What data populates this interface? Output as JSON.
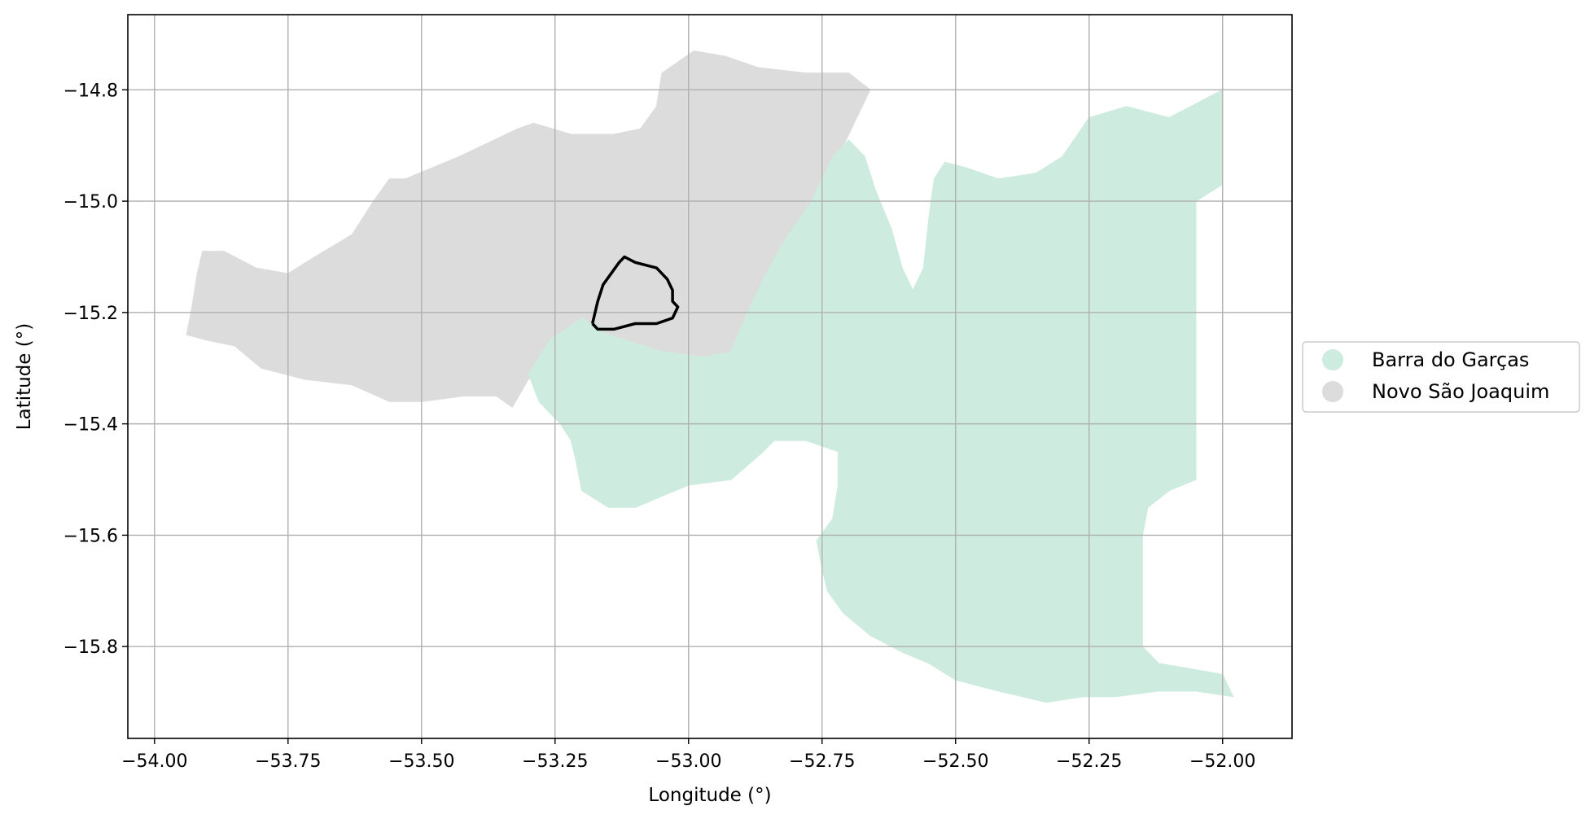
{
  "chart_data": {
    "type": "map",
    "xlabel": "Longitude (°)",
    "ylabel": "Latitude (°)",
    "xlim": [
      -54.05,
      -51.87
    ],
    "ylim": [
      -15.965,
      -14.665
    ],
    "grid": true,
    "legend_placement": "center-right-outside",
    "x_ticks": [
      {
        "value": -54.0,
        "label": "−54.00"
      },
      {
        "value": -53.75,
        "label": "−53.75"
      },
      {
        "value": -53.5,
        "label": "−53.50"
      },
      {
        "value": -53.25,
        "label": "−53.25"
      },
      {
        "value": -53.0,
        "label": "−53.00"
      },
      {
        "value": -52.75,
        "label": "−52.75"
      },
      {
        "value": -52.5,
        "label": "−52.50"
      },
      {
        "value": -52.25,
        "label": "−52.25"
      },
      {
        "value": -52.0,
        "label": "−52.00"
      }
    ],
    "y_ticks": [
      {
        "value": -14.8,
        "label": "−14.8"
      },
      {
        "value": -15.0,
        "label": "−15.0"
      },
      {
        "value": -15.2,
        "label": "−15.2"
      },
      {
        "value": -15.4,
        "label": "−15.4"
      },
      {
        "value": -15.6,
        "label": "−15.6"
      },
      {
        "value": -15.8,
        "label": "−15.8"
      }
    ],
    "regions": [
      {
        "name": "Novo São Joaquim",
        "color": "#dcdcdc",
        "outline": [
          [
            -53.94,
            -15.24
          ],
          [
            -53.93,
            -15.19
          ],
          [
            -53.92,
            -15.13
          ],
          [
            -53.91,
            -15.09
          ],
          [
            -53.87,
            -15.09
          ],
          [
            -53.81,
            -15.12
          ],
          [
            -53.75,
            -15.13
          ],
          [
            -53.7,
            -15.1
          ],
          [
            -53.63,
            -15.06
          ],
          [
            -53.59,
            -15.0
          ],
          [
            -53.56,
            -14.96
          ],
          [
            -53.53,
            -14.96
          ],
          [
            -53.43,
            -14.92
          ],
          [
            -53.32,
            -14.87
          ],
          [
            -53.29,
            -14.86
          ],
          [
            -53.22,
            -14.88
          ],
          [
            -53.14,
            -14.88
          ],
          [
            -53.09,
            -14.87
          ],
          [
            -53.06,
            -14.83
          ],
          [
            -53.05,
            -14.77
          ],
          [
            -52.99,
            -14.73
          ],
          [
            -52.93,
            -14.74
          ],
          [
            -52.87,
            -14.76
          ],
          [
            -52.78,
            -14.77
          ],
          [
            -52.7,
            -14.77
          ],
          [
            -52.66,
            -14.8
          ],
          [
            -52.71,
            -14.9
          ],
          [
            -52.77,
            -15.0
          ],
          [
            -52.82,
            -15.07
          ],
          [
            -52.86,
            -15.14
          ],
          [
            -52.89,
            -15.2
          ],
          [
            -52.92,
            -15.27
          ],
          [
            -52.97,
            -15.28
          ],
          [
            -53.05,
            -15.27
          ],
          [
            -53.15,
            -15.26
          ],
          [
            -53.23,
            -15.28
          ],
          [
            -53.3,
            -15.32
          ],
          [
            -53.33,
            -15.37
          ],
          [
            -53.36,
            -15.35
          ],
          [
            -53.42,
            -15.35
          ],
          [
            -53.5,
            -15.36
          ],
          [
            -53.56,
            -15.36
          ],
          [
            -53.63,
            -15.33
          ],
          [
            -53.72,
            -15.32
          ],
          [
            -53.8,
            -15.3
          ],
          [
            -53.85,
            -15.26
          ],
          [
            -53.9,
            -15.25
          ]
        ]
      },
      {
        "name": "Barra do Garças",
        "color": "#cdebdf",
        "outline": [
          [
            -53.3,
            -15.31
          ],
          [
            -53.26,
            -15.25
          ],
          [
            -53.2,
            -15.21
          ],
          [
            -53.15,
            -15.24
          ],
          [
            -53.05,
            -15.27
          ],
          [
            -52.97,
            -15.28
          ],
          [
            -52.92,
            -15.27
          ],
          [
            -52.89,
            -15.2
          ],
          [
            -52.86,
            -15.14
          ],
          [
            -52.82,
            -15.07
          ],
          [
            -52.77,
            -15.0
          ],
          [
            -52.73,
            -14.92
          ],
          [
            -52.7,
            -14.89
          ],
          [
            -52.67,
            -14.92
          ],
          [
            -52.65,
            -14.98
          ],
          [
            -52.62,
            -15.05
          ],
          [
            -52.6,
            -15.12
          ],
          [
            -52.58,
            -15.16
          ],
          [
            -52.56,
            -15.12
          ],
          [
            -52.55,
            -15.03
          ],
          [
            -52.54,
            -14.96
          ],
          [
            -52.52,
            -14.93
          ],
          [
            -52.48,
            -14.94
          ],
          [
            -52.42,
            -14.96
          ],
          [
            -52.35,
            -14.95
          ],
          [
            -52.3,
            -14.92
          ],
          [
            -52.25,
            -14.85
          ],
          [
            -52.18,
            -14.83
          ],
          [
            -52.1,
            -14.85
          ],
          [
            -52.04,
            -14.82
          ],
          [
            -52.0,
            -14.8
          ],
          [
            -52.0,
            -14.9
          ],
          [
            -52.0,
            -14.97
          ],
          [
            -52.05,
            -15.0
          ],
          [
            -52.05,
            -15.15
          ],
          [
            -52.05,
            -15.3
          ],
          [
            -52.05,
            -15.4
          ],
          [
            -52.05,
            -15.5
          ],
          [
            -52.1,
            -15.52
          ],
          [
            -52.14,
            -15.55
          ],
          [
            -52.15,
            -15.6
          ],
          [
            -52.15,
            -15.65
          ],
          [
            -52.15,
            -15.72
          ],
          [
            -52.15,
            -15.8
          ],
          [
            -52.12,
            -15.83
          ],
          [
            -52.06,
            -15.84
          ],
          [
            -52.0,
            -15.85
          ],
          [
            -51.98,
            -15.89
          ],
          [
            -52.05,
            -15.88
          ],
          [
            -52.12,
            -15.88
          ],
          [
            -52.2,
            -15.89
          ],
          [
            -52.26,
            -15.89
          ],
          [
            -52.33,
            -15.9
          ],
          [
            -52.42,
            -15.88
          ],
          [
            -52.5,
            -15.86
          ],
          [
            -52.55,
            -15.83
          ],
          [
            -52.6,
            -15.81
          ],
          [
            -52.66,
            -15.78
          ],
          [
            -52.71,
            -15.74
          ],
          [
            -52.74,
            -15.7
          ],
          [
            -52.75,
            -15.66
          ],
          [
            -52.76,
            -15.61
          ],
          [
            -52.73,
            -15.57
          ],
          [
            -52.72,
            -15.51
          ],
          [
            -52.72,
            -15.45
          ],
          [
            -52.78,
            -15.43
          ],
          [
            -52.84,
            -15.43
          ],
          [
            -52.86,
            -15.45
          ],
          [
            -52.92,
            -15.5
          ],
          [
            -53.0,
            -15.51
          ],
          [
            -53.05,
            -15.53
          ],
          [
            -53.1,
            -15.55
          ],
          [
            -53.15,
            -15.55
          ],
          [
            -53.2,
            -15.52
          ],
          [
            -53.21,
            -15.47
          ],
          [
            -53.22,
            -15.43
          ],
          [
            -53.24,
            -15.4
          ],
          [
            -53.28,
            -15.36
          ]
        ]
      }
    ],
    "highlight_outline": {
      "color": "#000000",
      "points": [
        [
          -53.18,
          -15.22
        ],
        [
          -53.17,
          -15.18
        ],
        [
          -53.16,
          -15.15
        ],
        [
          -53.13,
          -15.11
        ],
        [
          -53.12,
          -15.1
        ],
        [
          -53.1,
          -15.11
        ],
        [
          -53.06,
          -15.12
        ],
        [
          -53.04,
          -15.14
        ],
        [
          -53.03,
          -15.16
        ],
        [
          -53.03,
          -15.18
        ],
        [
          -53.02,
          -15.19
        ],
        [
          -53.03,
          -15.21
        ],
        [
          -53.06,
          -15.22
        ],
        [
          -53.1,
          -15.22
        ],
        [
          -53.14,
          -15.23
        ],
        [
          -53.17,
          -15.23
        ],
        [
          -53.18,
          -15.22
        ]
      ]
    },
    "legend": [
      {
        "label": "Barra do Garças",
        "color": "#cdebdf"
      },
      {
        "label": "Novo São Joaquim",
        "color": "#dcdcdc"
      }
    ]
  }
}
